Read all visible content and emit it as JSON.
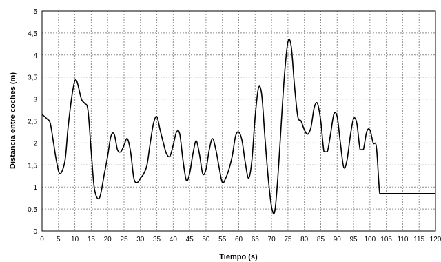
{
  "chart_data": {
    "type": "line",
    "xlabel": "Tiempo (s)",
    "ylabel": "Distancia entre coches (m)",
    "xlim": [
      0,
      120
    ],
    "ylim": [
      0,
      5
    ],
    "grid": true,
    "x_ticks": [
      "0",
      "5",
      "10",
      "15",
      "20",
      "25",
      "30",
      "35",
      "40",
      "45",
      "50",
      "55",
      "60",
      "65",
      "70",
      "75",
      "80",
      "85",
      "90",
      "95",
      "100",
      "105",
      "110",
      "115",
      "120"
    ],
    "y_ticks": [
      "0",
      "0,5",
      "1",
      "1,5",
      "2",
      "2,5",
      "3",
      "3,5",
      "4",
      "4,5",
      "5"
    ],
    "series": [
      {
        "color": "#000000",
        "x": [
          0,
          1.5,
          2.5,
          3.5,
          4.5,
          5.5,
          7,
          8,
          9.5,
          10.5,
          12,
          13,
          14,
          15,
          16,
          17.5,
          19,
          20,
          21,
          22,
          23,
          24,
          25,
          26,
          27,
          28,
          29,
          30,
          31,
          32,
          33,
          34,
          35,
          36,
          37,
          38,
          39,
          40,
          41,
          42,
          43,
          44,
          45,
          46,
          47,
          48,
          49,
          50,
          51,
          52,
          53,
          54,
          55,
          56,
          57,
          58,
          59,
          60,
          61,
          62,
          63,
          64,
          65,
          66,
          67,
          68,
          69,
          70,
          71,
          72,
          73,
          74,
          75,
          76,
          77,
          78,
          79,
          80,
          81,
          82,
          83,
          84,
          85,
          86,
          87,
          88,
          89,
          90,
          91,
          92,
          93,
          94,
          95,
          96,
          97,
          98,
          99,
          100,
          101,
          102,
          103,
          104,
          105,
          106,
          107,
          108,
          109,
          110,
          111,
          112,
          113,
          114,
          115,
          116,
          117,
          118,
          119,
          120
        ],
        "y": [
          2.65,
          2.55,
          2.45,
          2.0,
          1.55,
          1.3,
          1.6,
          2.4,
          3.25,
          3.42,
          3.0,
          2.9,
          2.75,
          1.8,
          0.95,
          0.75,
          1.3,
          1.7,
          2.15,
          2.2,
          1.85,
          1.8,
          1.95,
          2.1,
          1.8,
          1.2,
          1.1,
          1.2,
          1.3,
          1.5,
          2.0,
          2.45,
          2.6,
          2.3,
          2.0,
          1.75,
          1.7,
          1.95,
          2.25,
          2.2,
          1.6,
          1.15,
          1.3,
          1.75,
          2.05,
          1.75,
          1.3,
          1.4,
          1.85,
          2.1,
          1.85,
          1.45,
          1.1,
          1.2,
          1.4,
          1.7,
          2.15,
          2.25,
          2.05,
          1.55,
          1.2,
          1.6,
          2.6,
          3.25,
          3.1,
          2.1,
          1.2,
          0.55,
          0.45,
          1.3,
          2.5,
          3.6,
          4.3,
          4.2,
          3.3,
          2.6,
          2.5,
          2.3,
          2.2,
          2.35,
          2.8,
          2.9,
          2.5,
          1.8,
          1.8,
          2.2,
          2.65,
          2.6,
          2.0,
          1.45,
          1.6,
          2.15,
          2.55,
          2.45,
          1.85,
          1.85,
          2.25,
          2.3,
          2.0,
          1.9,
          0.85,
          0.85,
          0.85,
          0.85,
          0.85,
          0.85,
          0.85,
          0.85,
          0.85,
          0.85,
          0.85,
          0.85,
          0.85,
          0.85,
          0.85,
          0.85,
          0.85,
          0.85
        ]
      }
    ]
  }
}
